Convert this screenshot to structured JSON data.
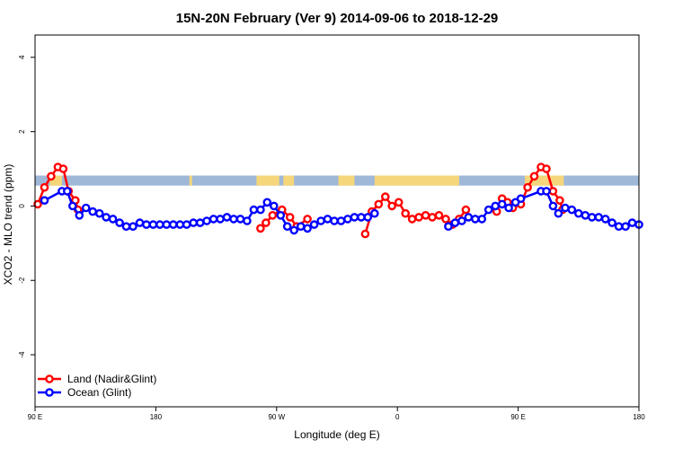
{
  "chart_data": {
    "type": "line",
    "title": "15N-20N February (Ver 9)   2014-09-06 to 2018-12-29",
    "xlabel": "Longitude (deg E)",
    "ylabel": "XCO2 - MLO trend (ppm)",
    "xlim": [
      0,
      450
    ],
    "ylim": [
      -5.4,
      4.6
    ],
    "x_ticks": [
      {
        "pos": 0,
        "label": "90 E"
      },
      {
        "pos": 90,
        "label": "180"
      },
      {
        "pos": 180,
        "label": "90 W"
      },
      {
        "pos": 270,
        "label": "0"
      },
      {
        "pos": 360,
        "label": "90 E"
      },
      {
        "pos": 450,
        "label": "180"
      }
    ],
    "y_ticks": [
      -4,
      -2,
      0,
      2,
      4
    ],
    "legend_position": "bottom-left",
    "grid": false,
    "land_strip": {
      "y_range": [
        0.55,
        0.82
      ],
      "ocean_color": "#9fb8d8",
      "land_color": "#f5d67a",
      "land_segments": [
        [
          11,
          20
        ],
        [
          115,
          117
        ],
        [
          165,
          182
        ],
        [
          185,
          193
        ],
        [
          226,
          238
        ],
        [
          253,
          316
        ],
        [
          365,
          394
        ]
      ]
    },
    "series": [
      {
        "name": "Land (Nadir&Glint)",
        "color": "#ff0000",
        "segments": [
          [
            [
              2,
              0.05
            ],
            [
              7,
              0.5
            ],
            [
              12,
              0.8
            ],
            [
              17,
              1.05
            ],
            [
              21,
              1.0
            ],
            [
              25,
              0.4
            ],
            [
              30,
              0.15
            ],
            [
              32,
              -0.1
            ]
          ],
          [
            [
              168,
              -0.6
            ],
            [
              172,
              -0.45
            ],
            [
              177,
              -0.25
            ],
            [
              184,
              -0.1
            ],
            [
              190,
              -0.3
            ],
            [
              195,
              -0.55
            ],
            [
              203,
              -0.35
            ]
          ],
          [
            [
              246,
              -0.75
            ],
            [
              251,
              -0.15
            ],
            [
              256,
              0.05
            ],
            [
              261,
              0.25
            ],
            [
              266,
              0.0
            ],
            [
              271,
              0.1
            ],
            [
              276,
              -0.2
            ],
            [
              281,
              -0.35
            ],
            [
              286,
              -0.3
            ],
            [
              291,
              -0.25
            ],
            [
              296,
              -0.3
            ],
            [
              301,
              -0.25
            ],
            [
              306,
              -0.35
            ],
            [
              311,
              -0.5
            ],
            [
              316,
              -0.35
            ],
            [
              321,
              -0.1
            ]
          ],
          [
            [
              344,
              -0.15
            ],
            [
              348,
              0.2
            ],
            [
              352,
              0.1
            ],
            [
              356,
              -0.05
            ],
            [
              362,
              0.05
            ],
            [
              367,
              0.5
            ],
            [
              372,
              0.8
            ],
            [
              377,
              1.05
            ],
            [
              381,
              1.0
            ],
            [
              386,
              0.4
            ],
            [
              391,
              0.15
            ],
            [
              393,
              -0.1
            ]
          ]
        ]
      },
      {
        "name": "Ocean (Glint)",
        "color": "#0000ff",
        "segments": [
          [
            [
              7,
              0.15
            ],
            [
              20,
              0.4
            ],
            [
              24,
              0.4
            ],
            [
              28,
              0.0
            ],
            [
              33,
              -0.25
            ],
            [
              38,
              -0.05
            ],
            [
              43,
              -0.15
            ],
            [
              48,
              -0.2
            ],
            [
              53,
              -0.3
            ],
            [
              58,
              -0.35
            ],
            [
              63,
              -0.45
            ],
            [
              68,
              -0.55
            ],
            [
              73,
              -0.55
            ],
            [
              78,
              -0.45
            ],
            [
              83,
              -0.5
            ],
            [
              88,
              -0.5
            ],
            [
              93,
              -0.5
            ],
            [
              98,
              -0.5
            ],
            [
              103,
              -0.5
            ],
            [
              108,
              -0.5
            ],
            [
              113,
              -0.5
            ],
            [
              118,
              -0.45
            ],
            [
              123,
              -0.45
            ],
            [
              128,
              -0.4
            ],
            [
              133,
              -0.35
            ],
            [
              138,
              -0.35
            ],
            [
              143,
              -0.3
            ],
            [
              148,
              -0.35
            ],
            [
              153,
              -0.35
            ],
            [
              158,
              -0.4
            ],
            [
              163,
              -0.1
            ],
            [
              168,
              -0.1
            ],
            [
              173,
              0.1
            ],
            [
              178,
              0.0
            ],
            [
              183,
              -0.25
            ],
            [
              188,
              -0.55
            ],
            [
              193,
              -0.65
            ],
            [
              198,
              -0.55
            ],
            [
              203,
              -0.6
            ],
            [
              208,
              -0.5
            ],
            [
              213,
              -0.4
            ],
            [
              218,
              -0.35
            ],
            [
              223,
              -0.4
            ],
            [
              228,
              -0.4
            ],
            [
              233,
              -0.35
            ],
            [
              238,
              -0.3
            ],
            [
              243,
              -0.3
            ],
            [
              248,
              -0.3
            ],
            [
              253,
              -0.2
            ]
          ],
          [
            [
              308,
              -0.55
            ],
            [
              313,
              -0.45
            ],
            [
              318,
              -0.4
            ],
            [
              323,
              -0.3
            ],
            [
              328,
              -0.35
            ],
            [
              333,
              -0.35
            ],
            [
              338,
              -0.1
            ],
            [
              343,
              0.0
            ],
            [
              348,
              0.05
            ],
            [
              353,
              -0.05
            ],
            [
              358,
              0.1
            ],
            [
              362,
              0.2
            ],
            [
              377,
              0.4
            ],
            [
              381,
              0.4
            ],
            [
              386,
              0.0
            ],
            [
              390,
              -0.2
            ],
            [
              395,
              -0.05
            ],
            [
              400,
              -0.1
            ],
            [
              405,
              -0.2
            ],
            [
              410,
              -0.25
            ],
            [
              415,
              -0.3
            ],
            [
              420,
              -0.3
            ],
            [
              425,
              -0.35
            ],
            [
              430,
              -0.45
            ],
            [
              435,
              -0.55
            ],
            [
              440,
              -0.55
            ],
            [
              445,
              -0.45
            ],
            [
              450,
              -0.5
            ]
          ]
        ]
      }
    ]
  }
}
